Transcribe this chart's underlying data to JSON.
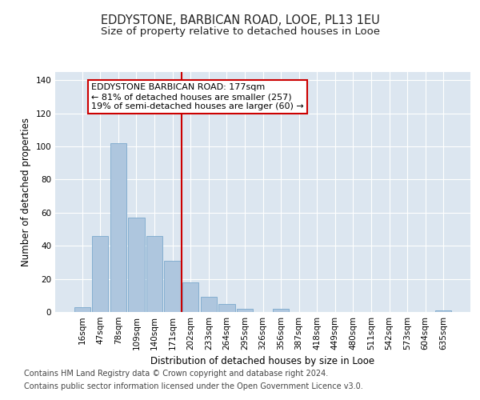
{
  "title1": "EDDYSTONE, BARBICAN ROAD, LOOE, PL13 1EU",
  "title2": "Size of property relative to detached houses in Looe",
  "xlabel": "Distribution of detached houses by size in Looe",
  "ylabel": "Number of detached properties",
  "categories": [
    "16sqm",
    "47sqm",
    "78sqm",
    "109sqm",
    "140sqm",
    "171sqm",
    "202sqm",
    "233sqm",
    "264sqm",
    "295sqm",
    "326sqm",
    "356sqm",
    "387sqm",
    "418sqm",
    "449sqm",
    "480sqm",
    "511sqm",
    "542sqm",
    "573sqm",
    "604sqm",
    "635sqm"
  ],
  "values": [
    3,
    46,
    102,
    57,
    46,
    31,
    18,
    9,
    5,
    2,
    0,
    2,
    0,
    0,
    0,
    0,
    0,
    0,
    0,
    0,
    1
  ],
  "bar_color": "#aec6de",
  "bar_edge_color": "#7aa8cc",
  "annotation_line1": "EDDYSTONE BARBICAN ROAD: 177sqm",
  "annotation_line2": "← 81% of detached houses are smaller (257)",
  "annotation_line3": "19% of semi-detached houses are larger (60) →",
  "annotation_box_color": "#ffffff",
  "annotation_box_edge": "#cc0000",
  "marker_line_color": "#cc0000",
  "ylim": [
    0,
    145
  ],
  "yticks": [
    0,
    20,
    40,
    60,
    80,
    100,
    120,
    140
  ],
  "background_color": "#dce6f0",
  "footer1": "Contains HM Land Registry data © Crown copyright and database right 2024.",
  "footer2": "Contains public sector information licensed under the Open Government Licence v3.0.",
  "title_fontsize": 10.5,
  "subtitle_fontsize": 9.5,
  "axis_label_fontsize": 8.5,
  "tick_fontsize": 7.5,
  "annotation_fontsize": 8,
  "footer_fontsize": 7
}
